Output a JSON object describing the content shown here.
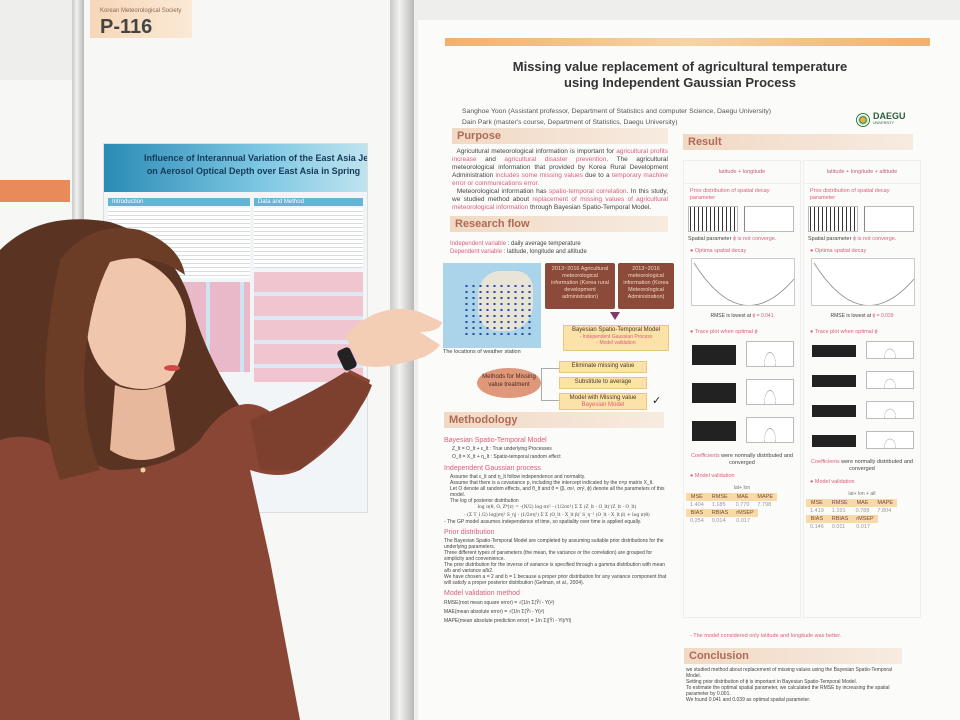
{
  "scene": {
    "booth_number": "P-116",
    "booth_tag_subtext": "Korean Meteorological Society"
  },
  "left_poster": {
    "title_line1": "Influence of Interannual Variation of the East Asia Jet Stream",
    "title_line2": "on Aerosol Optical Depth over East Asia in Spring",
    "sections": [
      "Introduction",
      "Data and Method"
    ]
  },
  "main_poster": {
    "title_line1": "Missing value replacement of agricultural temperature",
    "title_line2": "using Independent Gaussian Process",
    "author1": "Sanghoe Yoon (Assistant professor, Department of Statistics and computer Science, Daegu University)",
    "author2": "Dain Park (master's course, Department of Statistics, Daegu University)",
    "logo_text": "DAEGU",
    "logo_subtext": "UNIVERSITY",
    "purpose": {
      "heading": "Purpose",
      "p1_a": "Agricultural meteorological information is important for ",
      "p1_b": "agricultural profits increase",
      "p1_c": " and ",
      "p1_d": "agricultural disaster prevention",
      "p1_e": ". The agricultural meteorological information that provided by Korea Rural Development Administration ",
      "p1_f": "includes some missing values",
      "p1_g": " due to a ",
      "p1_h": "temporary machine error or communications error.",
      "p2_a": "Meteorological information has ",
      "p2_b": "spatio-temporal correlation",
      "p2_c": ". In this study, we studied method about ",
      "p2_d": "replacement of missing values of agricultural meteorological information",
      "p2_e": " through Bayesian Spatio-Temporal Model."
    },
    "research_flow": {
      "heading": "Research flow",
      "indep_label": "Independent variable",
      "indep_value": " : daily average temperature",
      "dep_label": "Dependent variable",
      "dep_value": " : latitude, longitude and altitude",
      "map_caption": "The locations of weather station",
      "box1": "2013~2016 Agricultural meteorological information (Korea rural development administration)",
      "box2": "2013~2016 meteorological information (Korea Meteorological Administration)",
      "model_box_title": "Bayesian Spatio-Temporal Model",
      "model_box_item1": "- Independent Gaussian Process",
      "model_box_item2": "- Model validation",
      "methods_oval": "Methods for Missing value treatment",
      "option1": "Eliminate missing value",
      "option2": "Substitute to average",
      "option3_a": "Model with Missing value",
      "option3_b": "Bayesian Model",
      "check": "✓"
    },
    "methodology": {
      "heading": "Methodology",
      "bstm_title": "Bayesian Spatio-Temporal Model",
      "bstm_items": [
        "Z_lt = O_lt + ε_lt : True underlying Processes",
        "O_lt = X_lt + η_lt : Spatio-temporal random effect"
      ],
      "igp_title": "Independent Gaussian process",
      "igp_items": [
        "Assume that ε_lt and η_lt follow independence and normality.",
        "Assume that there is a covariance p, including the intercept indicated by the n×p matrix X_lt.",
        "Let O denote all random effects, and θ_lt and θ = (β, σε², ση², ϕ) denote all the parameters of this model.",
        "The log of posterior distribution"
      ],
      "formula1": "log π(θ, O, Z*|z) = -(N/2) log σε² - (1/2σε²) Σ Σ (Z_lt - O_lt)'(Z_lt - O_lt)",
      "formula2": "- (Σ T_l /2) log|ση² S_η| - (1/2ση²) Σ Σ (O_lt - X_lt β)' S_η⁻¹ (O_lt - X_lt β) + log π(θ)",
      "igp_note": "- The GP model assumes independence of time, so spatiality over time is applied equally.",
      "prior_title": "Prior distribution",
      "prior_items_a": "The Bayesian Spatio-Temporal Model are completed by assuming suitable prior distributions for the underlying parameters.",
      "prior_items_b": "Three different types of parameters (the mean, the variance or the correlation) are grouped for simplicity and convenience.",
      "prior_items_c": "The prior distribution for the inverse of variance is specified through a gamma distribution with mean a/b and variance a/b2.",
      "prior_items_d": "We have chosen a = 2 and b = 1 because a proper prior distribution for any variance component that will satisfy a proper posterior distribution (Gelman, et al., 2004).",
      "validation_title": "Model validation method",
      "validation_items": [
        "RMSE(root mean square error) = √(1/n Σ(Ŷi - Yi)²)",
        "MAE(mean absolute error) = √(1/n Σ(Ŷi - Yi)²)",
        "MAPE(mean absolute prediction error) = 1/n Σ|(Ŷi - Yi)/Yi|"
      ]
    },
    "result": {
      "heading": "Result",
      "columns": [
        {
          "header": "latitude + longitude",
          "prior_label": "Prior distribution of spatial decay parameter",
          "converge_a": "Spatial parameter ",
          "converge_b": "ϕ is not converge.",
          "optima_label": "Optima spatial decay",
          "rmse_a": "RMSE is lowest at ",
          "rmse_b": "ϕ = 0.041",
          "trace_label": "Trace plot when optimal ϕ",
          "coef_a": "Coefficients",
          "coef_b": " were normally distributed and converged",
          "validation_label": "Model validation",
          "table_caption": "lat+ lon",
          "table1_headers": [
            "MSE",
            "RMSE",
            "MAE",
            "MAPE"
          ],
          "table1_values": [
            "1.404",
            "1.185",
            "0.770",
            "7.798"
          ],
          "table2_headers": [
            "BIAS",
            "RBIAS",
            "rMSEP"
          ],
          "table2_values": [
            "0.254",
            "0.014",
            "0.017"
          ]
        },
        {
          "header": "latitude + longitude + altitude",
          "prior_label": "Prior distribution of spatial decay parameter",
          "converge_a": "Spatial parameter ",
          "converge_b": "ϕ is not converge.",
          "optima_label": "Optima spatial decay",
          "rmse_a": "RMSE is lowest at ",
          "rmse_b": "ϕ = 0.039",
          "trace_label": "Trace plot when optimal ϕ",
          "coef_a": "Coefficients",
          "coef_b": " were normally distributed and converged",
          "validation_label": "Model validation",
          "table_caption": "lat+ lon + alt",
          "table1_headers": [
            "MSE",
            "RMSE",
            "MAE",
            "MAPE"
          ],
          "table1_values": [
            "1.419",
            "1.191",
            "0.788",
            "7.804"
          ],
          "table2_headers": [
            "BIAS",
            "RBIAS",
            "rMSEP"
          ],
          "table2_values": [
            "0.146",
            "0.011",
            "0.017"
          ]
        }
      ],
      "note": "- The model considered only latitude and longitude was better."
    },
    "conclusion": {
      "heading": "Conclusion",
      "items": [
        "we studied method about replacement of missing values using the Bayesian Spatio-Temporal Model.",
        "Setting prior distribution of ϕ is important in Bayesian Spatio-Temporal Model.",
        "To estimate the optimal spatial parameter, we calculated the RMSE by increasing the spatial parameter by 0.001.",
        "We found 0.041 and 0.039 as optimal spatial parameter."
      ]
    }
  },
  "colors": {
    "section_header": "#f1d9c4",
    "highlight_red": "#d9607a",
    "flow_brown": "#8b4a3a",
    "flow_yellow": "#fbe2a8",
    "dress": "#8a4634",
    "title_bar": "#f0b070"
  }
}
